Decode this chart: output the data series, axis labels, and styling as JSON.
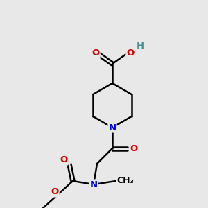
{
  "bg_color": "#e8e8e8",
  "atom_colors": {
    "C": "#000000",
    "N": "#0000ee",
    "O": "#dd0000",
    "H": "#4a9090"
  },
  "bond_color": "#000000",
  "bond_width": 1.8,
  "font_size": 9.5,
  "fig_size": [
    3.0,
    3.0
  ],
  "dpi": 100,
  "pip_N": [
    162,
    148
  ],
  "pip_r": 32,
  "pip_angles": [
    270,
    330,
    30,
    90,
    150,
    210
  ]
}
